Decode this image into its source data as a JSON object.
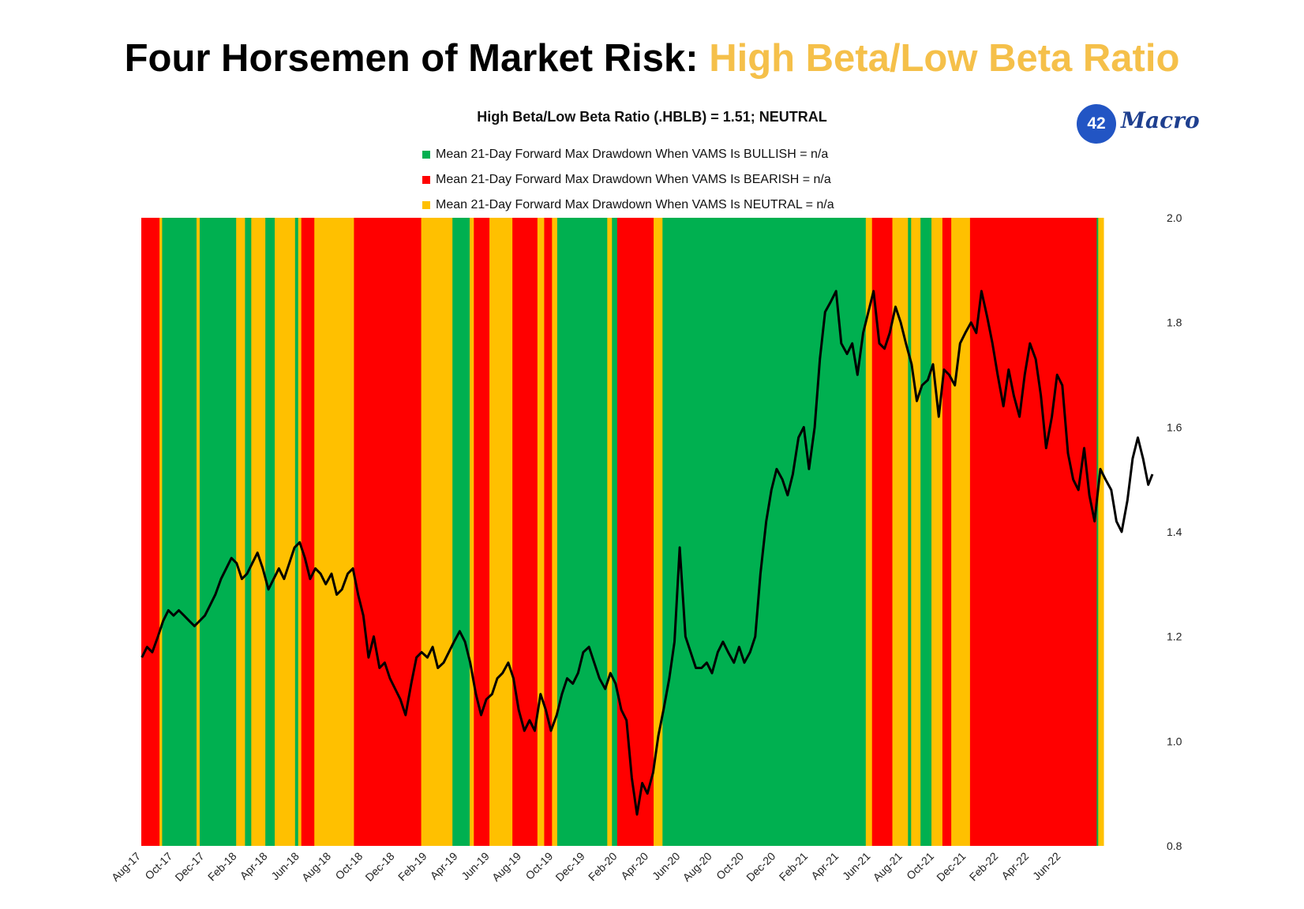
{
  "page": {
    "title_main": "Four Horsemen of Market Risk: ",
    "title_accent": "High Beta/Low Beta Ratio",
    "accent_color": "#F5C04A"
  },
  "logo": {
    "number": "42",
    "word": "Macro"
  },
  "chart_data": {
    "type": "line",
    "title": "High Beta/Low Beta Ratio (.HBLB) = 1.51; NEUTRAL",
    "legend": [
      {
        "label": "Mean 21-Day Forward Max Drawdown When VAMS Is BULLISH = n/a",
        "color": "#00B050"
      },
      {
        "label": "Mean 21-Day Forward Max Drawdown When VAMS Is BEARISH = n/a",
        "color": "#FF0000"
      },
      {
        "label": "Mean 21-Day Forward Max Drawdown When VAMS Is NEUTRAL = n/a",
        "color": "#FFC000"
      }
    ],
    "regime_colors": {
      "BULLISH": "#00B050",
      "BEARISH": "#FF0000",
      "NEUTRAL": "#FFC000"
    },
    "x_tick_labels": [
      "Aug-17",
      "Oct-17",
      "Dec-17",
      "Feb-18",
      "Apr-18",
      "Jun-18",
      "Aug-18",
      "Oct-18",
      "Dec-18",
      "Feb-19",
      "Apr-19",
      "Jun-19",
      "Aug-19",
      "Oct-19",
      "Dec-19",
      "Feb-20",
      "Apr-20",
      "Jun-20",
      "Aug-20",
      "Oct-20",
      "Dec-20",
      "Feb-21",
      "Apr-21",
      "Jun-21",
      "Aug-21",
      "Oct-21",
      "Dec-21",
      "Feb-22",
      "Apr-22",
      "Jun-22"
    ],
    "x_range": [
      "2017-08",
      "2022-08"
    ],
    "y_range": [
      0.8,
      2.0
    ],
    "y_ticks": [
      "0.8",
      "1.0",
      "1.2",
      "1.4",
      "1.6",
      "1.8",
      "2.0"
    ],
    "y_axis_position": "right",
    "line_color": "#000000",
    "regimes": [
      [
        "2017-08-01",
        "2017-09-05",
        "BEARISH"
      ],
      [
        "2017-09-05",
        "2017-09-10",
        "NEUTRAL"
      ],
      [
        "2017-09-10",
        "2017-11-15",
        "BULLISH"
      ],
      [
        "2017-11-15",
        "2017-11-21",
        "NEUTRAL"
      ],
      [
        "2017-11-21",
        "2018-01-30",
        "BULLISH"
      ],
      [
        "2018-01-30",
        "2018-02-16",
        "NEUTRAL"
      ],
      [
        "2018-02-16",
        "2018-02-28",
        "BULLISH"
      ],
      [
        "2018-02-28",
        "2018-03-27",
        "NEUTRAL"
      ],
      [
        "2018-03-27",
        "2018-04-14",
        "BULLISH"
      ],
      [
        "2018-04-14",
        "2018-05-23",
        "NEUTRAL"
      ],
      [
        "2018-05-23",
        "2018-05-29",
        "BULLISH"
      ],
      [
        "2018-05-29",
        "2018-06-04",
        "NEUTRAL"
      ],
      [
        "2018-06-04",
        "2018-06-29",
        "BEARISH"
      ],
      [
        "2018-06-29",
        "2018-09-13",
        "NEUTRAL"
      ],
      [
        "2018-09-13",
        "2019-01-20",
        "BEARISH"
      ],
      [
        "2019-01-20",
        "2019-03-21",
        "NEUTRAL"
      ],
      [
        "2019-03-21",
        "2019-04-23",
        "BULLISH"
      ],
      [
        "2019-04-23",
        "2019-05-01",
        "NEUTRAL"
      ],
      [
        "2019-05-01",
        "2019-05-31",
        "BEARISH"
      ],
      [
        "2019-05-31",
        "2019-07-14",
        "NEUTRAL"
      ],
      [
        "2019-07-14",
        "2019-08-31",
        "BEARISH"
      ],
      [
        "2019-08-31",
        "2019-09-13",
        "NEUTRAL"
      ],
      [
        "2019-09-13",
        "2019-09-28",
        "BEARISH"
      ],
      [
        "2019-09-28",
        "2019-10-08",
        "NEUTRAL"
      ],
      [
        "2019-10-08",
        "2020-01-12",
        "BULLISH"
      ],
      [
        "2020-01-12",
        "2020-01-21",
        "NEUTRAL"
      ],
      [
        "2020-01-21",
        "2020-01-31",
        "BULLISH"
      ],
      [
        "2020-01-31",
        "2020-04-10",
        "BEARISH"
      ],
      [
        "2020-04-10",
        "2020-04-27",
        "NEUTRAL"
      ],
      [
        "2020-04-27",
        "2021-05-22",
        "BULLISH"
      ],
      [
        "2021-05-22",
        "2021-06-03",
        "NEUTRAL"
      ],
      [
        "2021-06-03",
        "2021-07-12",
        "BEARISH"
      ],
      [
        "2021-07-12",
        "2021-08-11",
        "NEUTRAL"
      ],
      [
        "2021-08-11",
        "2021-08-17",
        "BULLISH"
      ],
      [
        "2021-08-17",
        "2021-09-04",
        "NEUTRAL"
      ],
      [
        "2021-09-04",
        "2021-09-25",
        "BULLISH"
      ],
      [
        "2021-09-25",
        "2021-10-16",
        "NEUTRAL"
      ],
      [
        "2021-10-16",
        "2021-11-02",
        "BEARISH"
      ],
      [
        "2021-11-02",
        "2021-12-08",
        "NEUTRAL"
      ],
      [
        "2021-12-08",
        "2022-08-08",
        "BEARISH"
      ],
      [
        "2022-08-08",
        "2022-08-11",
        "BULLISH"
      ],
      [
        "2022-08-11",
        "2022-08-21",
        "NEUTRAL"
      ]
    ],
    "series": [
      {
        "values": [
          [
            "2017-08-02",
            1.16
          ],
          [
            "2017-08-12",
            1.18
          ],
          [
            "2017-08-22",
            1.17
          ],
          [
            "2017-09-02",
            1.2
          ],
          [
            "2017-09-12",
            1.23
          ],
          [
            "2017-09-22",
            1.25
          ],
          [
            "2017-10-02",
            1.24
          ],
          [
            "2017-10-12",
            1.25
          ],
          [
            "2017-10-22",
            1.24
          ],
          [
            "2017-11-01",
            1.23
          ],
          [
            "2017-11-11",
            1.22
          ],
          [
            "2017-11-21",
            1.23
          ],
          [
            "2017-12-01",
            1.24
          ],
          [
            "2017-12-11",
            1.26
          ],
          [
            "2017-12-21",
            1.28
          ],
          [
            "2018-01-01",
            1.31
          ],
          [
            "2018-01-11",
            1.33
          ],
          [
            "2018-01-21",
            1.35
          ],
          [
            "2018-01-31",
            1.34
          ],
          [
            "2018-02-10",
            1.31
          ],
          [
            "2018-02-20",
            1.32
          ],
          [
            "2018-03-02",
            1.34
          ],
          [
            "2018-03-12",
            1.36
          ],
          [
            "2018-03-22",
            1.33
          ],
          [
            "2018-04-02",
            1.29
          ],
          [
            "2018-04-12",
            1.31
          ],
          [
            "2018-04-22",
            1.33
          ],
          [
            "2018-05-02",
            1.31
          ],
          [
            "2018-05-12",
            1.34
          ],
          [
            "2018-05-22",
            1.37
          ],
          [
            "2018-06-01",
            1.38
          ],
          [
            "2018-06-11",
            1.35
          ],
          [
            "2018-06-21",
            1.31
          ],
          [
            "2018-07-01",
            1.33
          ],
          [
            "2018-07-11",
            1.32
          ],
          [
            "2018-07-21",
            1.3
          ],
          [
            "2018-08-01",
            1.32
          ],
          [
            "2018-08-11",
            1.28
          ],
          [
            "2018-08-21",
            1.29
          ],
          [
            "2018-09-01",
            1.32
          ],
          [
            "2018-09-11",
            1.33
          ],
          [
            "2018-09-21",
            1.28
          ],
          [
            "2018-10-01",
            1.24
          ],
          [
            "2018-10-11",
            1.16
          ],
          [
            "2018-10-21",
            1.2
          ],
          [
            "2018-11-01",
            1.14
          ],
          [
            "2018-11-11",
            1.15
          ],
          [
            "2018-11-21",
            1.12
          ],
          [
            "2018-12-01",
            1.1
          ],
          [
            "2018-12-11",
            1.08
          ],
          [
            "2018-12-21",
            1.05
          ],
          [
            "2019-01-01",
            1.11
          ],
          [
            "2019-01-11",
            1.16
          ],
          [
            "2019-01-21",
            1.17
          ],
          [
            "2019-02-01",
            1.16
          ],
          [
            "2019-02-11",
            1.18
          ],
          [
            "2019-02-21",
            1.14
          ],
          [
            "2019-03-04",
            1.15
          ],
          [
            "2019-03-14",
            1.17
          ],
          [
            "2019-03-24",
            1.19
          ],
          [
            "2019-04-04",
            1.21
          ],
          [
            "2019-04-14",
            1.19
          ],
          [
            "2019-04-24",
            1.15
          ],
          [
            "2019-05-05",
            1.09
          ],
          [
            "2019-05-15",
            1.05
          ],
          [
            "2019-05-25",
            1.08
          ],
          [
            "2019-06-05",
            1.09
          ],
          [
            "2019-06-15",
            1.12
          ],
          [
            "2019-06-25",
            1.13
          ],
          [
            "2019-07-06",
            1.15
          ],
          [
            "2019-07-16",
            1.12
          ],
          [
            "2019-07-26",
            1.06
          ],
          [
            "2019-08-06",
            1.02
          ],
          [
            "2019-08-16",
            1.04
          ],
          [
            "2019-08-26",
            1.02
          ],
          [
            "2019-09-06",
            1.09
          ],
          [
            "2019-09-16",
            1.06
          ],
          [
            "2019-09-26",
            1.02
          ],
          [
            "2019-10-07",
            1.05
          ],
          [
            "2019-10-17",
            1.09
          ],
          [
            "2019-10-27",
            1.12
          ],
          [
            "2019-11-07",
            1.11
          ],
          [
            "2019-11-17",
            1.13
          ],
          [
            "2019-11-27",
            1.17
          ],
          [
            "2019-12-08",
            1.18
          ],
          [
            "2019-12-18",
            1.15
          ],
          [
            "2019-12-28",
            1.12
          ],
          [
            "2020-01-08",
            1.1
          ],
          [
            "2020-01-18",
            1.13
          ],
          [
            "2020-01-28",
            1.11
          ],
          [
            "2020-02-08",
            1.06
          ],
          [
            "2020-02-18",
            1.04
          ],
          [
            "2020-02-28",
            0.93
          ],
          [
            "2020-03-09",
            0.86
          ],
          [
            "2020-03-19",
            0.92
          ],
          [
            "2020-03-29",
            0.9
          ],
          [
            "2020-04-09",
            0.94
          ],
          [
            "2020-04-19",
            1.01
          ],
          [
            "2020-04-29",
            1.06
          ],
          [
            "2020-05-10",
            1.12
          ],
          [
            "2020-05-20",
            1.19
          ],
          [
            "2020-05-30",
            1.37
          ],
          [
            "2020-06-10",
            1.2
          ],
          [
            "2020-06-20",
            1.17
          ],
          [
            "2020-06-30",
            1.14
          ],
          [
            "2020-07-11",
            1.14
          ],
          [
            "2020-07-21",
            1.15
          ],
          [
            "2020-07-31",
            1.13
          ],
          [
            "2020-08-11",
            1.17
          ],
          [
            "2020-08-21",
            1.19
          ],
          [
            "2020-08-31",
            1.17
          ],
          [
            "2020-09-11",
            1.15
          ],
          [
            "2020-09-21",
            1.18
          ],
          [
            "2020-10-01",
            1.15
          ],
          [
            "2020-10-12",
            1.17
          ],
          [
            "2020-10-22",
            1.2
          ],
          [
            "2020-11-01",
            1.32
          ],
          [
            "2020-11-12",
            1.42
          ],
          [
            "2020-11-22",
            1.48
          ],
          [
            "2020-12-02",
            1.52
          ],
          [
            "2020-12-13",
            1.5
          ],
          [
            "2020-12-23",
            1.47
          ],
          [
            "2021-01-02",
            1.51
          ],
          [
            "2021-01-13",
            1.58
          ],
          [
            "2021-01-23",
            1.6
          ],
          [
            "2021-02-02",
            1.52
          ],
          [
            "2021-02-13",
            1.6
          ],
          [
            "2021-02-23",
            1.73
          ],
          [
            "2021-03-05",
            1.82
          ],
          [
            "2021-03-16",
            1.84
          ],
          [
            "2021-03-26",
            1.86
          ],
          [
            "2021-04-05",
            1.76
          ],
          [
            "2021-04-16",
            1.74
          ],
          [
            "2021-04-26",
            1.76
          ],
          [
            "2021-05-06",
            1.7
          ],
          [
            "2021-05-17",
            1.78
          ],
          [
            "2021-05-27",
            1.82
          ],
          [
            "2021-06-06",
            1.86
          ],
          [
            "2021-06-17",
            1.76
          ],
          [
            "2021-06-27",
            1.75
          ],
          [
            "2021-07-07",
            1.78
          ],
          [
            "2021-07-18",
            1.83
          ],
          [
            "2021-07-28",
            1.8
          ],
          [
            "2021-08-07",
            1.76
          ],
          [
            "2021-08-18",
            1.72
          ],
          [
            "2021-08-28",
            1.65
          ],
          [
            "2021-09-07",
            1.68
          ],
          [
            "2021-09-18",
            1.69
          ],
          [
            "2021-09-28",
            1.72
          ],
          [
            "2021-10-09",
            1.62
          ],
          [
            "2021-10-19",
            1.71
          ],
          [
            "2021-10-29",
            1.7
          ],
          [
            "2021-11-09",
            1.68
          ],
          [
            "2021-11-19",
            1.76
          ],
          [
            "2021-11-29",
            1.78
          ],
          [
            "2021-12-10",
            1.8
          ],
          [
            "2021-12-20",
            1.78
          ],
          [
            "2021-12-30",
            1.86
          ],
          [
            "2022-01-10",
            1.81
          ],
          [
            "2022-01-20",
            1.76
          ],
          [
            "2022-01-30",
            1.7
          ],
          [
            "2022-02-10",
            1.64
          ],
          [
            "2022-02-20",
            1.71
          ],
          [
            "2022-03-02",
            1.66
          ],
          [
            "2022-03-13",
            1.62
          ],
          [
            "2022-03-23",
            1.7
          ],
          [
            "2022-04-02",
            1.76
          ],
          [
            "2022-04-13",
            1.73
          ],
          [
            "2022-04-23",
            1.66
          ],
          [
            "2022-05-03",
            1.56
          ],
          [
            "2022-05-14",
            1.62
          ],
          [
            "2022-05-24",
            1.7
          ],
          [
            "2022-06-03",
            1.68
          ],
          [
            "2022-06-14",
            1.55
          ],
          [
            "2022-06-24",
            1.5
          ],
          [
            "2022-07-04",
            1.48
          ],
          [
            "2022-07-15",
            1.56
          ],
          [
            "2022-07-25",
            1.47
          ],
          [
            "2022-08-04",
            1.42
          ],
          [
            "2022-08-15",
            1.52
          ],
          [
            "2022-08-25",
            1.5
          ],
          [
            "2022-09-05",
            1.48
          ],
          [
            "2022-09-15",
            1.42
          ],
          [
            "2022-09-25",
            1.4
          ],
          [
            "2022-10-06",
            1.46
          ],
          [
            "2022-10-16",
            1.54
          ],
          [
            "2022-10-26",
            1.58
          ],
          [
            "2022-11-05",
            1.54
          ],
          [
            "2022-11-15",
            1.49
          ],
          [
            "2022-11-23",
            1.51
          ]
        ]
      }
    ]
  }
}
